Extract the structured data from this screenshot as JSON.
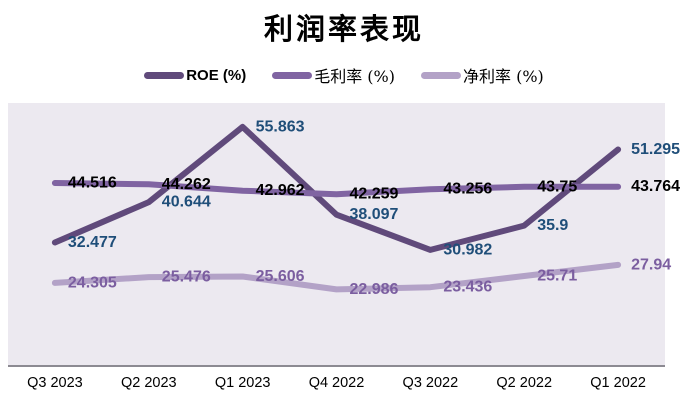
{
  "chart_data": {
    "type": "line",
    "title": "利润率表现",
    "categories": [
      "Q3 2023",
      "Q2 2023",
      "Q1 2023",
      "Q4 2022",
      "Q3 2022",
      "Q2 2022",
      "Q1 2022"
    ],
    "series": [
      {
        "name": "ROE (%)",
        "color": "#604A7B",
        "label_color": "#1F4E79",
        "values": [
          32.477,
          40.644,
          55.863,
          38.097,
          30.982,
          35.9,
          51.295
        ]
      },
      {
        "name": "毛利率 (%)",
        "color": "#8064A2",
        "label_color": "#000000",
        "values": [
          44.516,
          44.262,
          42.962,
          42.259,
          43.256,
          43.75,
          43.764
        ]
      },
      {
        "name": "净利率 (%)",
        "color": "#B3A2C7",
        "label_color": "#7B5EA0",
        "values": [
          24.305,
          25.476,
          25.606,
          22.986,
          23.436,
          25.71,
          27.94
        ]
      }
    ],
    "xlabel": "",
    "ylabel": "",
    "ylim": [
      7.7,
      60.7
    ],
    "grid": false,
    "legend_position": "top",
    "plot_background": "#ECE9F0",
    "axis_line_color": "#8C8A92",
    "data_labels": true
  }
}
